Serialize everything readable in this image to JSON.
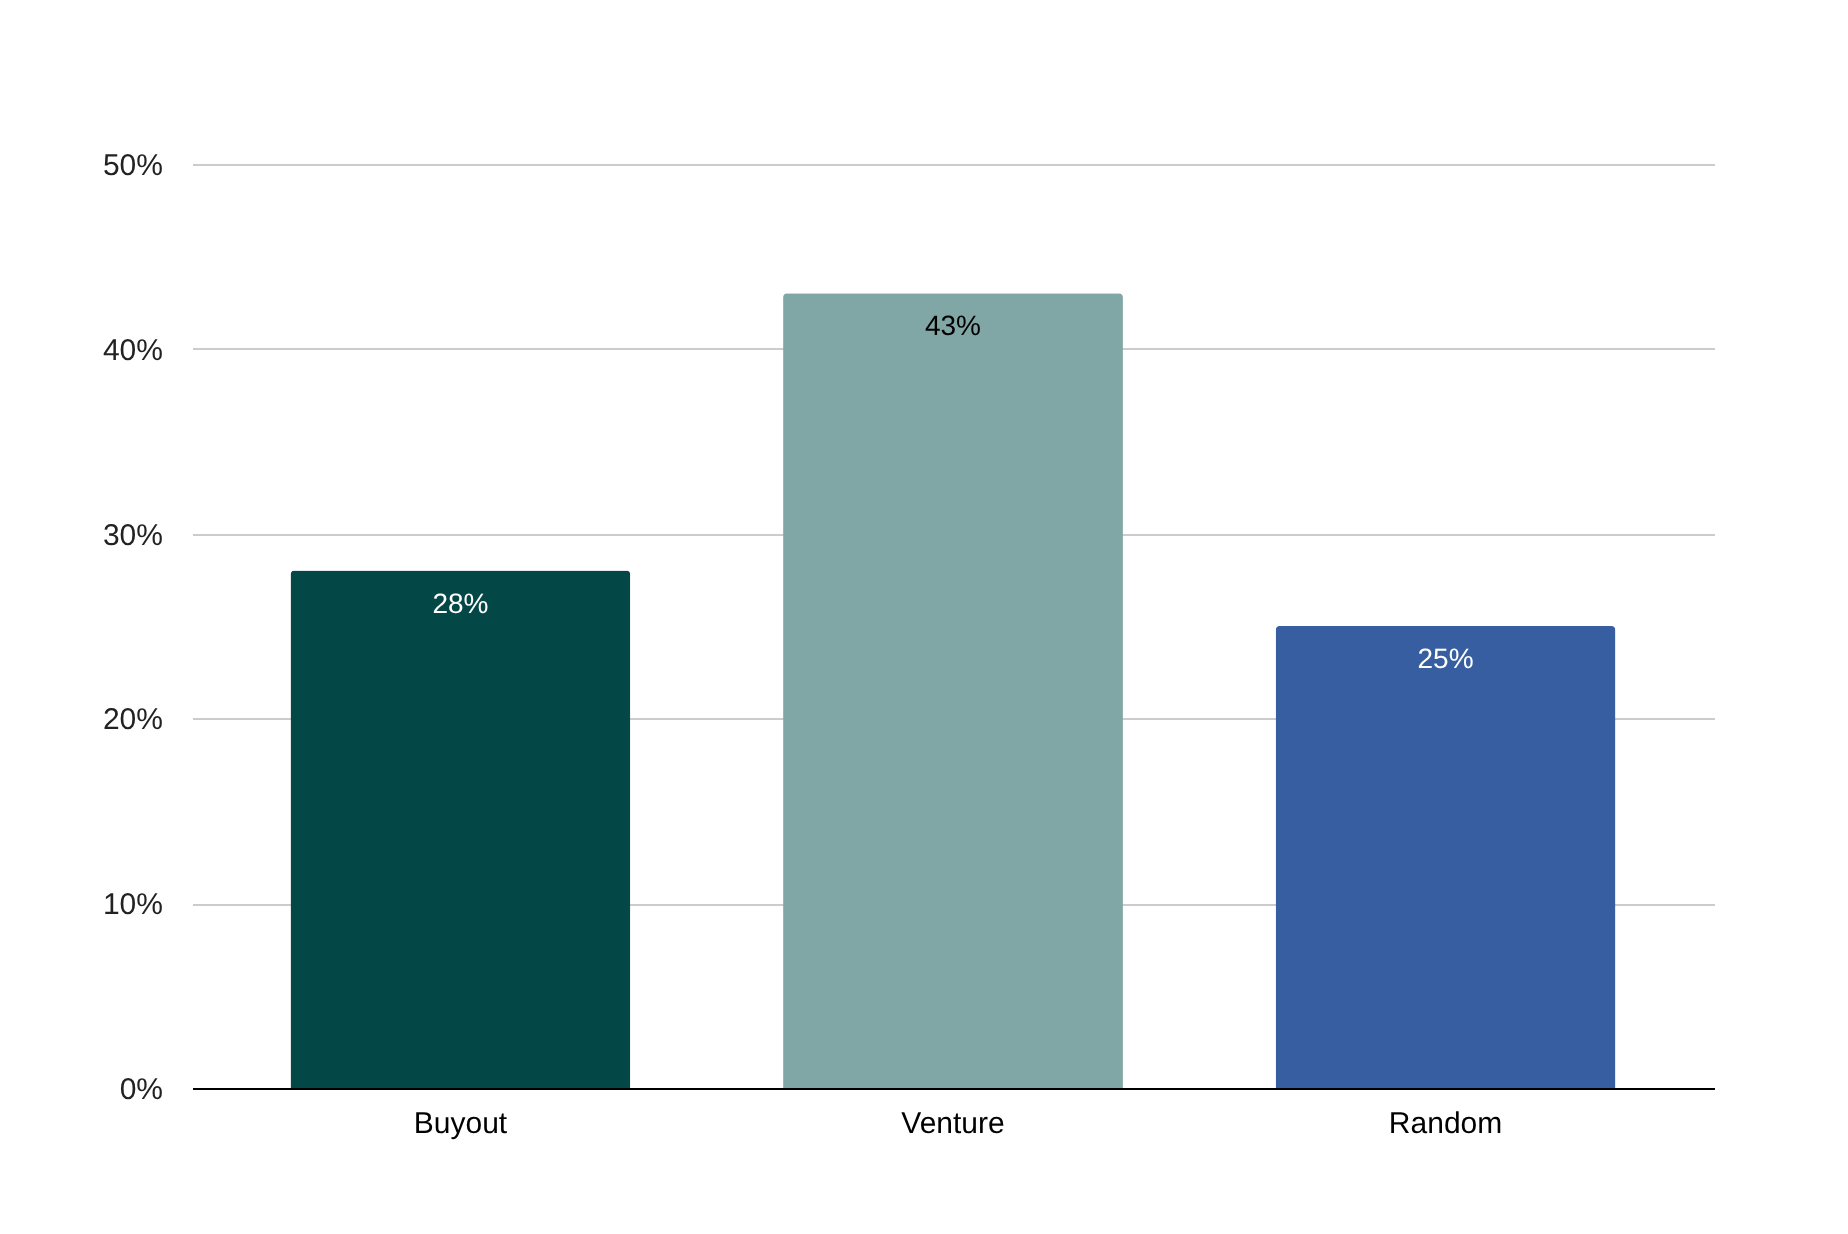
{
  "chart_data": {
    "type": "bar",
    "categories": [
      "Buyout",
      "Venture",
      "Random"
    ],
    "values": [
      28,
      43,
      25
    ],
    "colors": [
      "#034846",
      "#80a6a5",
      "#365ea0"
    ],
    "value_labels": [
      "28%",
      "43%",
      "25%"
    ],
    "ylim": [
      0,
      50
    ],
    "yticks": [
      {
        "value": 0,
        "label": "0%"
      },
      {
        "value": 10,
        "label": "10%"
      },
      {
        "value": 20,
        "label": "20%"
      },
      {
        "value": 30,
        "label": "30%"
      },
      {
        "value": 40,
        "label": "40%"
      },
      {
        "value": 50,
        "label": "50%"
      }
    ],
    "grid": "y"
  }
}
